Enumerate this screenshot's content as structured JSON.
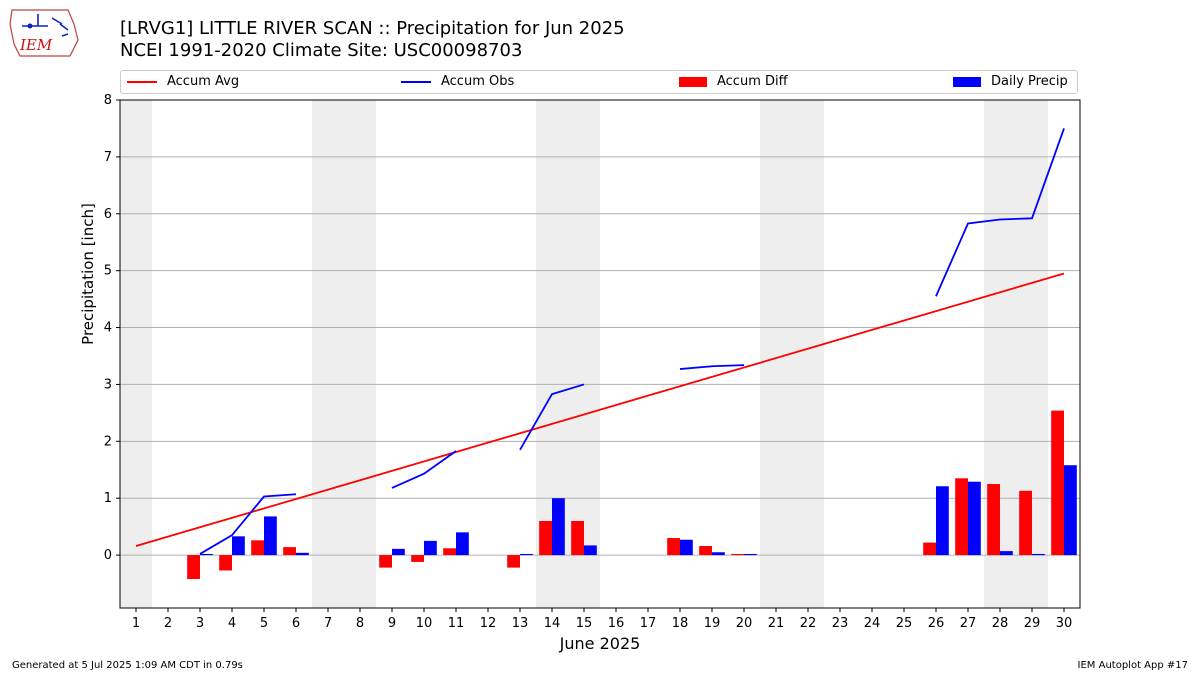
{
  "header": {
    "title_line1": "[LRVG1] LITTLE RIVER SCAN :: Precipitation for Jun 2025",
    "title_line2": "NCEI 1991-2020 Climate Site: USC00098703",
    "logo_text": "IEM"
  },
  "footer": {
    "generated": "Generated at 5 Jul 2025 1:09 AM CDT in 0.79s",
    "app": "IEM Autoplot App #17"
  },
  "colors": {
    "avg": "#ff0000",
    "obs": "#0000ff",
    "diff": "#ff0000",
    "daily": "#0000ff",
    "weekend": "#eeeeee",
    "grid": "#b0b0b0"
  },
  "chart_data": {
    "type": "bar",
    "xlabel": "June 2025",
    "ylabel": "Precipitation [inch]",
    "xlim": [
      0.5,
      30.5
    ],
    "ylim": [
      -0.93,
      8
    ],
    "yticks": [
      0,
      1,
      2,
      3,
      4,
      5,
      6,
      7,
      8
    ],
    "xticks": [
      1,
      2,
      3,
      4,
      5,
      6,
      7,
      8,
      9,
      10,
      11,
      12,
      13,
      14,
      15,
      16,
      17,
      18,
      19,
      20,
      21,
      22,
      23,
      24,
      25,
      26,
      27,
      28,
      29,
      30
    ],
    "grid": "y",
    "legend_position": "top",
    "weekend_days": [
      1,
      7,
      8,
      14,
      15,
      21,
      22,
      28,
      29
    ],
    "series": [
      {
        "name": "Accum Avg",
        "kind": "line",
        "days": [
          1,
          30
        ],
        "values": [
          0.16,
          4.95
        ]
      },
      {
        "name": "Accum Obs",
        "kind": "line",
        "segments": [
          {
            "days": [
              3,
              4,
              5,
              6
            ],
            "values": [
              0.02,
              0.35,
              1.03,
              1.07
            ]
          },
          {
            "days": [
              9,
              10,
              11
            ],
            "values": [
              1.18,
              1.43,
              1.83
            ]
          },
          {
            "days": [
              13,
              14,
              15
            ],
            "values": [
              1.85,
              2.83,
              3.0
            ]
          },
          {
            "days": [
              18,
              19,
              20
            ],
            "values": [
              3.27,
              3.32,
              3.34
            ]
          },
          {
            "days": [
              26,
              27,
              28,
              29,
              30
            ],
            "values": [
              4.55,
              5.83,
              5.9,
              5.92,
              7.5
            ]
          }
        ]
      },
      {
        "name": "Accum Diff",
        "kind": "bar",
        "days": [
          3,
          4,
          5,
          6,
          9,
          10,
          11,
          13,
          14,
          15,
          18,
          19,
          20,
          26,
          27,
          28,
          29,
          30
        ],
        "values": [
          -0.42,
          -0.27,
          0.26,
          0.14,
          -0.22,
          -0.12,
          0.12,
          -0.22,
          0.6,
          0.6,
          0.3,
          0.16,
          0.02,
          0.22,
          1.35,
          1.25,
          1.13,
          2.54
        ]
      },
      {
        "name": "Daily Precip",
        "kind": "bar",
        "days": [
          3,
          4,
          5,
          6,
          9,
          10,
          11,
          13,
          14,
          15,
          18,
          19,
          20,
          26,
          27,
          28,
          29,
          30
        ],
        "values": [
          0.02,
          0.33,
          0.68,
          0.04,
          0.11,
          0.25,
          0.4,
          0.02,
          1.0,
          0.17,
          0.27,
          0.05,
          0.02,
          1.21,
          1.29,
          0.07,
          0.02,
          1.58
        ]
      }
    ]
  }
}
